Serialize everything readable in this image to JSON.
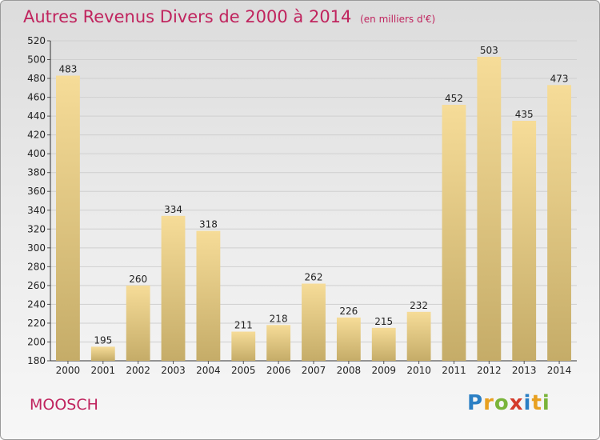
{
  "title": "Autres Revenus Divers de 2000 à 2014",
  "subtitle": "(en milliers d'€)",
  "place": "MOOSCH",
  "logo": {
    "letters": [
      "P",
      "r",
      "o",
      "x",
      "i",
      "t",
      "i"
    ],
    "colors": [
      "#2b7fc4",
      "#e8a020",
      "#7ab43a",
      "#d43c2c",
      "#2b7fc4",
      "#e8a020",
      "#7ab43a"
    ]
  },
  "colors": {
    "accent": "#c0245e",
    "bar_light": "#f6dc98",
    "bar_dark": "#c5ac68"
  },
  "chart_data": {
    "type": "bar",
    "title": "Autres Revenus Divers de 2000 à 2014",
    "subtitle": "(en milliers d'€)",
    "categories": [
      "2000",
      "2001",
      "2002",
      "2003",
      "2004",
      "2005",
      "2006",
      "2007",
      "2008",
      "2009",
      "2010",
      "2011",
      "2012",
      "2013",
      "2014"
    ],
    "values": [
      483,
      195,
      260,
      334,
      318,
      211,
      218,
      262,
      226,
      215,
      232,
      452,
      503,
      435,
      473
    ],
    "ylim": [
      180,
      520
    ],
    "yticks": [
      180,
      200,
      220,
      240,
      260,
      280,
      300,
      320,
      340,
      360,
      380,
      400,
      420,
      440,
      460,
      480,
      500,
      520
    ],
    "grid": true,
    "legend": "none"
  }
}
